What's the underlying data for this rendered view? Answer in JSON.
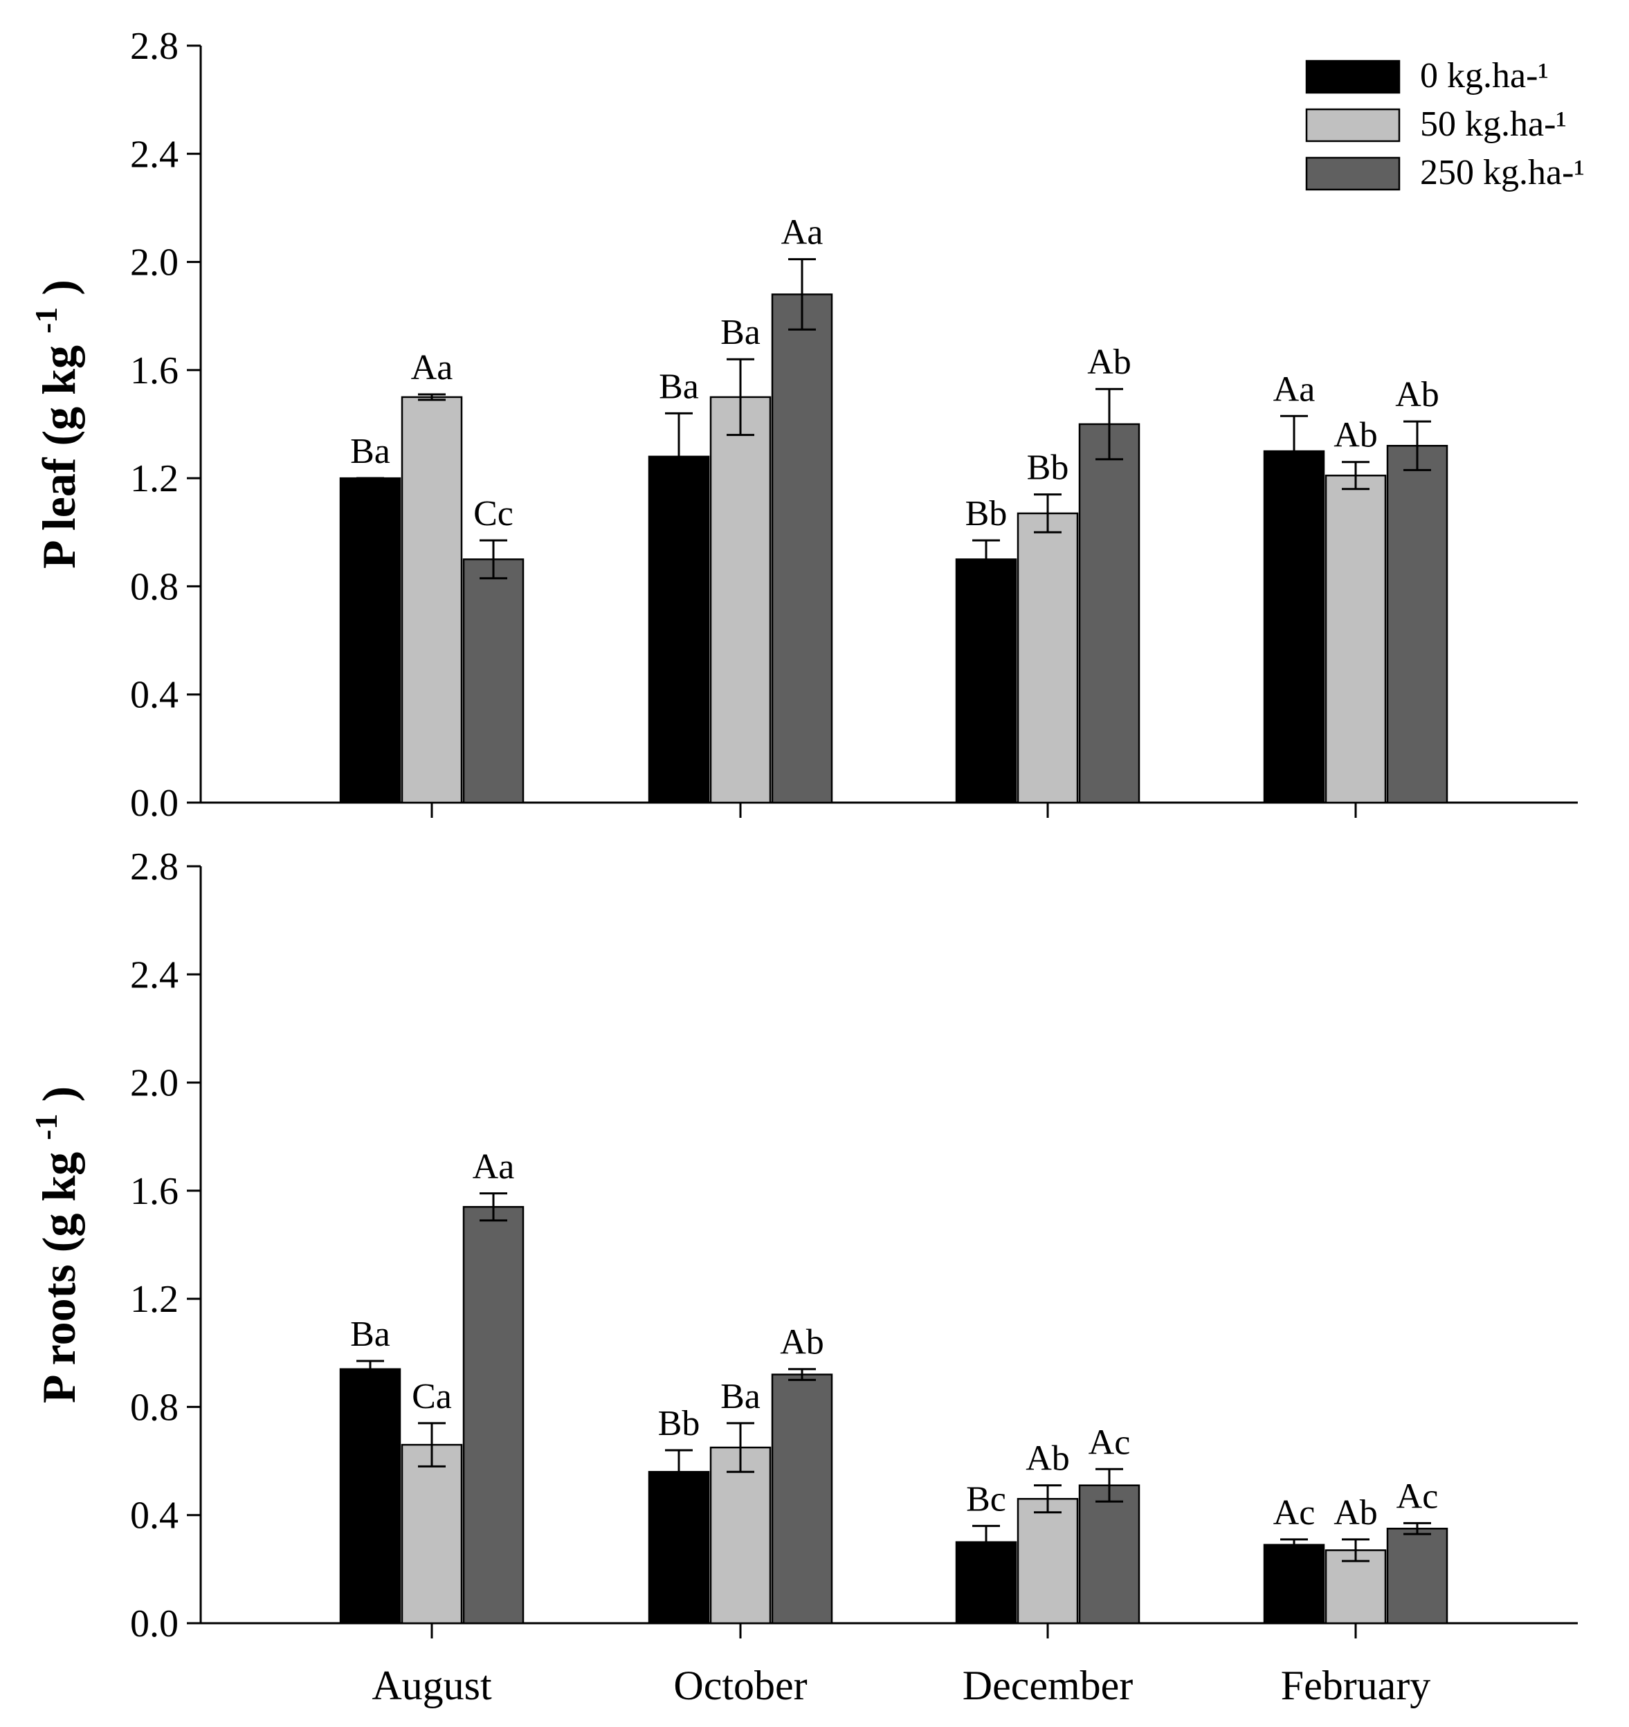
{
  "legend": [
    {
      "label": "0 kg.ha-¹",
      "color": "#000000"
    },
    {
      "label": "50 kg.ha-¹",
      "color": "#c0c0c0"
    },
    {
      "label": "250 kg.ha-¹",
      "color": "#606060"
    }
  ],
  "chart_data": [
    {
      "type": "bar",
      "panel": "top",
      "ylabel_main": "P leaf (g kg",
      "ylabel_sup": "-1",
      "ylabel_end": ")",
      "xlabel": "",
      "ylim": [
        0,
        2.8
      ],
      "yticks": [
        "0.0",
        "0.4",
        "0.8",
        "1.2",
        "1.6",
        "2.0",
        "2.4",
        "2.8"
      ],
      "categories": [
        "August",
        "October",
        "December",
        "February"
      ],
      "show_category_labels": false,
      "series": [
        {
          "name": "0 kg.ha-¹",
          "values": [
            1.2,
            1.28,
            0.9,
            1.3
          ],
          "errors": [
            0.0,
            0.16,
            0.07,
            0.13
          ],
          "labels": [
            "Ba",
            "Ba",
            "Bb",
            "Aa"
          ]
        },
        {
          "name": "50 kg.ha-¹",
          "values": [
            1.5,
            1.5,
            1.07,
            1.21
          ],
          "errors": [
            0.01,
            0.14,
            0.07,
            0.05
          ],
          "labels": [
            "Aa",
            "Ba",
            "Bb",
            "Ab"
          ]
        },
        {
          "name": "250 kg.ha-¹",
          "values": [
            0.9,
            1.88,
            1.4,
            1.32
          ],
          "errors": [
            0.07,
            0.13,
            0.13,
            0.09
          ],
          "labels": [
            "Cc",
            "Aa",
            "Ab",
            "Ab"
          ]
        }
      ]
    },
    {
      "type": "bar",
      "panel": "bottom",
      "ylabel_main": "P roots (g kg",
      "ylabel_sup": "-1",
      "ylabel_end": ")",
      "xlabel": "",
      "ylim": [
        0,
        2.8
      ],
      "yticks": [
        "0.0",
        "0.4",
        "0.8",
        "1.2",
        "1.6",
        "2.0",
        "2.4",
        "2.8"
      ],
      "categories": [
        "August",
        "October",
        "December",
        "February"
      ],
      "show_category_labels": true,
      "series": [
        {
          "name": "0 kg.ha-¹",
          "values": [
            0.94,
            0.56,
            0.3,
            0.29
          ],
          "errors": [
            0.03,
            0.08,
            0.06,
            0.02
          ],
          "labels": [
            "Ba",
            "Bb",
            "Bc",
            "Ac"
          ]
        },
        {
          "name": "50 kg.ha-¹",
          "values": [
            0.66,
            0.65,
            0.46,
            0.27
          ],
          "errors": [
            0.08,
            0.09,
            0.05,
            0.04
          ],
          "labels": [
            "Ca",
            "Ba",
            "Ab",
            "Ab"
          ]
        },
        {
          "name": "250 kg.ha-¹",
          "values": [
            1.54,
            0.92,
            0.51,
            0.35
          ],
          "errors": [
            0.05,
            0.02,
            0.06,
            0.02
          ],
          "labels": [
            "Aa",
            "Ab",
            "Ac",
            "Ac"
          ]
        }
      ]
    }
  ]
}
